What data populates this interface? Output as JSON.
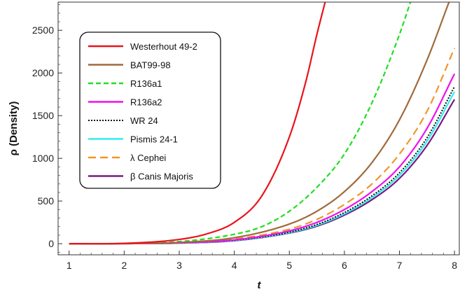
{
  "chart_data": {
    "type": "line",
    "xlabel": "t",
    "ylabel": "ρ (Density)",
    "xlim": [
      0.8,
      8.1
    ],
    "ylim": [
      -130,
      2830
    ],
    "xticks": [
      1,
      2,
      3,
      4,
      5,
      6,
      7,
      8
    ],
    "yticks": [
      0,
      500,
      1000,
      1500,
      2000,
      2500
    ],
    "grid": false,
    "legend_position": "top-left",
    "series": [
      {
        "name": "Westerhout 49-2",
        "color": "#e8141b",
        "dash": "solid",
        "x": [
          1,
          2,
          3,
          3.5,
          4,
          4.5,
          5,
          5.3,
          5.5,
          5.65
        ],
        "y": [
          0,
          4,
          50,
          115,
          250,
          560,
          1250,
          1900,
          2450,
          2830
        ]
      },
      {
        "name": "BAT99-98",
        "color": "#a06a3b",
        "dash": "solid",
        "x": [
          1,
          2,
          3,
          4,
          5,
          5.5,
          6,
          6.5,
          7,
          7.5,
          7.9
        ],
        "y": [
          0,
          2,
          15,
          70,
          230,
          380,
          610,
          950,
          1450,
          2150,
          2830
        ]
      },
      {
        "name": "R136a1",
        "color": "#22dd22",
        "dash": "dashed",
        "x": [
          1,
          2,
          3,
          4,
          4.5,
          5,
          5.5,
          6,
          6.5,
          7,
          7.2
        ],
        "y": [
          0,
          3,
          25,
          110,
          200,
          380,
          660,
          1050,
          1650,
          2450,
          2830
        ]
      },
      {
        "name": "R136a2",
        "color": "#ee10ee",
        "dash": "solid",
        "x": [
          1,
          2,
          3,
          4,
          5,
          5.5,
          6,
          6.5,
          7,
          7.5,
          8
        ],
        "y": [
          0,
          1,
          10,
          45,
          150,
          250,
          400,
          610,
          900,
          1350,
          1990
        ]
      },
      {
        "name": "WR 24",
        "color": "#111111",
        "dash": "dotted",
        "x": [
          1,
          2,
          3,
          4,
          5,
          5.5,
          6,
          6.5,
          7,
          7.5,
          8
        ],
        "y": [
          0,
          1,
          9,
          40,
          135,
          225,
          365,
          560,
          830,
          1240,
          1840
        ]
      },
      {
        "name": "Pismis 24-1",
        "color": "#33eeee",
        "dash": "solid",
        "x": [
          1,
          2,
          3,
          4,
          5,
          5.5,
          6,
          6.5,
          7,
          7.5,
          8
        ],
        "y": [
          0,
          1,
          8,
          38,
          130,
          215,
          350,
          540,
          800,
          1200,
          1780
        ]
      },
      {
        "name": "λ Cephei",
        "color": "#f0962a",
        "dash": "longdash",
        "x": [
          1,
          2,
          3,
          4,
          5,
          5.5,
          6,
          6.5,
          7,
          7.5,
          8
        ],
        "y": [
          0,
          1,
          11,
          55,
          170,
          285,
          460,
          700,
          1050,
          1550,
          2290
        ]
      },
      {
        "name": "β Canis Majoris",
        "color": "#7a1a80",
        "dash": "solid",
        "x": [
          1,
          2,
          3,
          4,
          5,
          5.5,
          6,
          6.5,
          7,
          7.5,
          8
        ],
        "y": [
          0,
          1,
          7,
          35,
          125,
          205,
          335,
          515,
          765,
          1150,
          1690
        ]
      }
    ]
  }
}
